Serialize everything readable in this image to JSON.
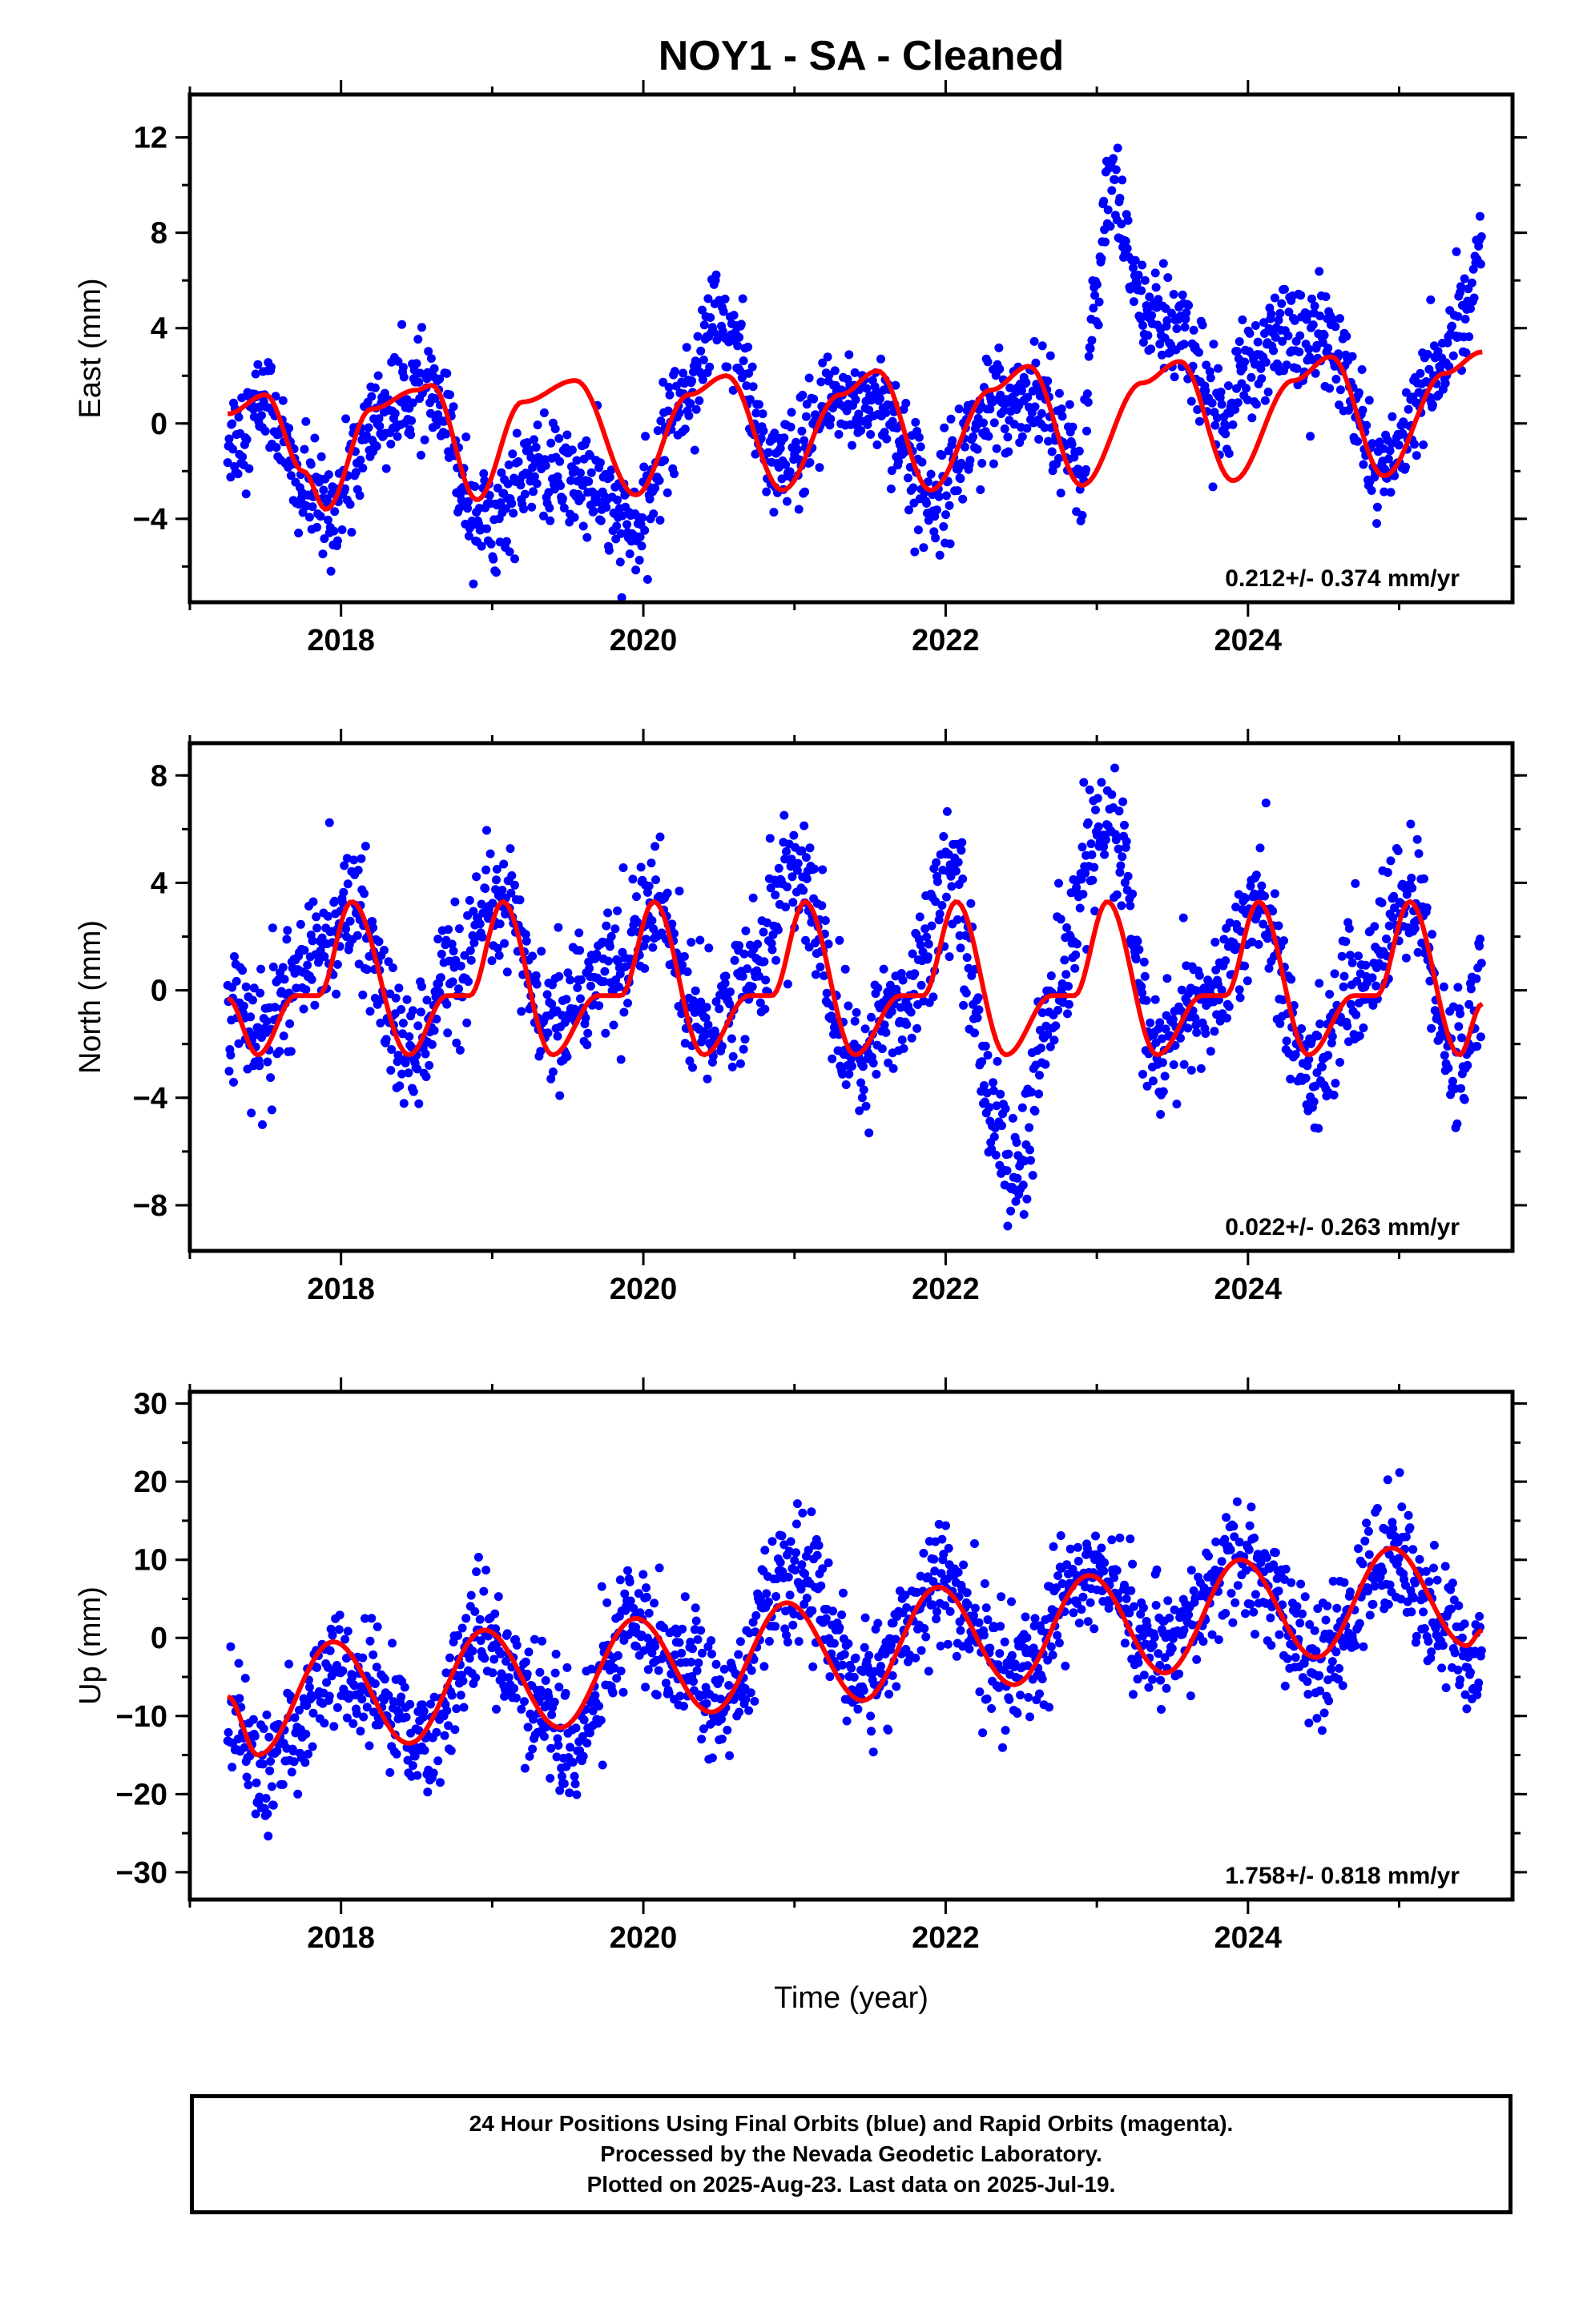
{
  "title": "NOY1  - SA - Cleaned",
  "footer": {
    "line1": "24 Hour Positions Using Final Orbits (blue) and Rapid Orbits (magenta).",
    "line2": "Processed by the Nevada Geodetic Laboratory.",
    "line3": "Plotted on 2025-Aug-23. Last data on 2025-Jul-19."
  },
  "colors": {
    "points": "#0000ff",
    "fit": "#ff0000",
    "axes": "#000000"
  },
  "chart_data": [
    {
      "type": "scatter",
      "xlabel": "",
      "ylabel": "East (mm)",
      "xlim": [
        2017.0,
        2025.75
      ],
      "ylim": [
        -7.5,
        13.8
      ],
      "x_ticks": [
        2018,
        2020,
        2022,
        2024
      ],
      "y_ticks": [
        -4,
        0,
        4,
        8,
        12
      ],
      "rate_label": "0.212+/- 0.374 mm/yr",
      "data_start": 2017.25,
      "data_end": 2025.55,
      "fit_x": [
        2017.25,
        2017.5,
        2017.75,
        2017.9,
        2018.2,
        2018.5,
        2018.6,
        2018.9,
        2019.2,
        2019.55,
        2019.95,
        2020.3,
        2020.55,
        2020.92,
        2021.3,
        2021.55,
        2021.9,
        2022.3,
        2022.55,
        2022.9,
        2023.3,
        2023.55,
        2023.9,
        2024.3,
        2024.55,
        2024.9,
        2025.3,
        2025.55
      ],
      "fit_y": [
        0.4,
        1.2,
        -2.0,
        -3.6,
        0.6,
        1.4,
        1.6,
        -3.2,
        0.9,
        1.8,
        -3.0,
        1.2,
        2.0,
        -2.8,
        1.2,
        2.2,
        -2.8,
        1.4,
        2.4,
        -2.6,
        1.7,
        2.6,
        -2.4,
        1.8,
        2.8,
        -2.2,
        2.1,
        3.0
      ],
      "obs_x": [
        2017.3,
        2017.5,
        2017.75,
        2017.9,
        2018.3,
        2018.55,
        2018.95,
        2019.3,
        2019.6,
        2019.95,
        2020.25,
        2020.5,
        2020.9,
        2021.3,
        2021.55,
        2021.9,
        2022.3,
        2022.6,
        2022.9,
        2023.0,
        2023.1,
        2023.2,
        2023.35,
        2023.55,
        2023.8,
        2024.0,
        2024.2,
        2024.5,
        2024.9,
        2025.2,
        2025.45,
        2025.55
      ],
      "obs_y": [
        -0.5,
        1.0,
        -2.8,
        -3.6,
        0.5,
        1.5,
        -4.0,
        -2.0,
        -2.5,
        -4.5,
        1.0,
        4.5,
        -2.0,
        1.0,
        1.0,
        -3.0,
        0.5,
        1.5,
        -2.0,
        6.0,
        10.0,
        7.0,
        4.5,
        4.0,
        0.5,
        2.0,
        4.0,
        3.5,
        -2.0,
        1.5,
        5.0,
        8.0
      ],
      "obs_spread": 1.1
    },
    {
      "type": "scatter",
      "xlabel": "",
      "ylabel": "North (mm)",
      "xlim": [
        2017.0,
        2025.75
      ],
      "ylim": [
        -9.7,
        9.2
      ],
      "x_ticks": [
        2018,
        2020,
        2022,
        2024
      ],
      "y_ticks": [
        -8,
        -4,
        0,
        4,
        8
      ],
      "rate_label": "0.022+/- 0.263 mm/yr",
      "data_start": 2017.25,
      "data_end": 2025.55,
      "fit_x": [
        2017.25,
        2017.45,
        2017.7,
        2017.85,
        2018.07,
        2018.45,
        2018.7,
        2018.85,
        2019.07,
        2019.4,
        2019.7,
        2019.85,
        2020.07,
        2020.4,
        2020.7,
        2020.85,
        2021.07,
        2021.4,
        2021.7,
        2021.85,
        2022.07,
        2022.4,
        2022.7,
        2022.85,
        2023.07,
        2023.4,
        2023.7,
        2023.85,
        2024.07,
        2024.4,
        2024.7,
        2024.85,
        2025.07,
        2025.4,
        2025.55
      ],
      "fit_y": [
        -0.3,
        -2.4,
        -0.2,
        -0.2,
        3.3,
        -2.4,
        -0.2,
        -0.2,
        3.3,
        -2.4,
        -0.2,
        -0.2,
        3.3,
        -2.4,
        -0.2,
        -0.2,
        3.3,
        -2.4,
        -0.2,
        -0.2,
        3.3,
        -2.4,
        -0.2,
        -0.2,
        3.3,
        -2.4,
        -0.2,
        -0.2,
        3.3,
        -2.4,
        -0.2,
        -0.2,
        3.3,
        -2.4,
        -0.5
      ],
      "obs_x": [
        2017.3,
        2017.45,
        2017.7,
        2018.07,
        2018.45,
        2018.7,
        2019.07,
        2019.4,
        2019.7,
        2020.07,
        2020.4,
        2020.7,
        2021.0,
        2021.4,
        2021.7,
        2022.05,
        2022.3,
        2022.45,
        2022.7,
        2023.0,
        2023.1,
        2023.4,
        2023.7,
        2024.07,
        2024.4,
        2024.7,
        2025.07,
        2025.4,
        2025.55
      ],
      "obs_y": [
        -0.5,
        -2.0,
        0.5,
        3.0,
        -2.5,
        0.5,
        3.0,
        -1.5,
        0.5,
        3.0,
        -1.5,
        0.5,
        4.5,
        -2.5,
        -0.5,
        4.5,
        -4.0,
        -7.0,
        -1.0,
        5.5,
        6.0,
        -2.5,
        -0.5,
        3.0,
        -3.0,
        0.0,
        3.5,
        -3.0,
        0.5
      ],
      "obs_spread": 1.2
    },
    {
      "type": "scatter",
      "xlabel": "Time (year)",
      "ylabel": "Up (mm)",
      "xlim": [
        2017.0,
        2025.75
      ],
      "ylim": [
        -33.5,
        31.5
      ],
      "x_ticks": [
        2018,
        2020,
        2022,
        2024
      ],
      "y_ticks": [
        -30,
        -20,
        -10,
        0,
        10,
        20,
        30
      ],
      "rate_label": "1.758+/- 0.818 mm/yr",
      "data_start": 2017.25,
      "data_end": 2025.55,
      "fit_x": [
        2017.25,
        2017.45,
        2017.95,
        2018.45,
        2018.95,
        2019.45,
        2019.95,
        2020.45,
        2020.95,
        2021.45,
        2021.95,
        2022.45,
        2022.95,
        2023.45,
        2023.95,
        2024.45,
        2024.95,
        2025.45,
        2025.55
      ],
      "fit_y": [
        -7.5,
        -15.0,
        -0.5,
        -13.5,
        1.0,
        -11.5,
        2.5,
        -9.5,
        4.5,
        -8.0,
        6.5,
        -6.0,
        8.0,
        -4.5,
        10.0,
        -2.5,
        11.5,
        -1.0,
        1.0
      ],
      "obs_x": [
        2017.3,
        2017.5,
        2017.7,
        2017.95,
        2018.3,
        2018.5,
        2018.95,
        2019.3,
        2019.5,
        2019.95,
        2020.3,
        2020.5,
        2020.95,
        2021.05,
        2021.45,
        2021.95,
        2022.45,
        2022.95,
        2023.45,
        2023.95,
        2024.3,
        2024.45,
        2024.95,
        2025.3,
        2025.5
      ],
      "obs_y": [
        -10.0,
        -18.0,
        -12.0,
        -4.0,
        -8.0,
        -14.0,
        0.0,
        -8.0,
        -14.0,
        2.0,
        -2.0,
        -8.0,
        6.0,
        8.0,
        -6.0,
        7.0,
        -5.0,
        9.0,
        -2.0,
        10.0,
        2.0,
        -4.0,
        11.0,
        2.0,
        -4.0
      ],
      "obs_spread": 3.8
    }
  ]
}
